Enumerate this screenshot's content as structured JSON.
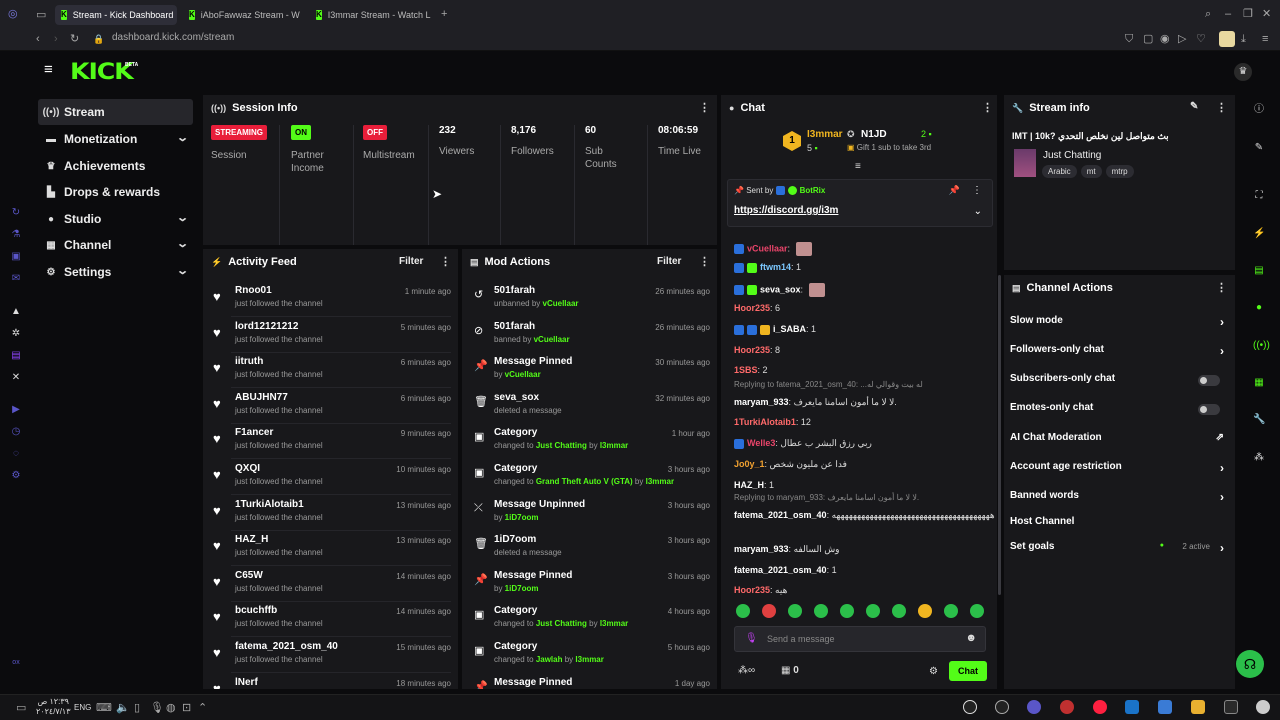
{
  "browser": {
    "tabs": [
      {
        "label": "Stream - Kick Dashboard"
      },
      {
        "label": "iAboFawwaz Stream - W"
      },
      {
        "label": "I3mmar Stream - Watch L"
      }
    ],
    "url": "dashboard.kick.com/stream"
  },
  "app": {
    "logo": "KICK",
    "logo_badge": "BETA"
  },
  "nav": {
    "items": [
      {
        "label": "Stream",
        "icon": "stream-icon"
      },
      {
        "label": "Monetization",
        "icon": "money-icon"
      },
      {
        "label": "Achievements",
        "icon": "achievements-icon"
      },
      {
        "label": "Drops & rewards",
        "icon": "drops-icon"
      },
      {
        "label": "Studio",
        "icon": "studio-icon"
      },
      {
        "label": "Channel",
        "icon": "channel-icon"
      },
      {
        "label": "Settings",
        "icon": "gear-icon"
      }
    ]
  },
  "session": {
    "title": "Session Info",
    "badges": [
      {
        "text": "STREAMING",
        "label": "Session",
        "color": "#e91e3a"
      },
      {
        "text": "ON",
        "label": "Partner Income",
        "color": "#53fc18"
      },
      {
        "text": "OFF",
        "label": "Multistream",
        "color": "#e91e3a"
      }
    ],
    "stats": [
      {
        "value": "232",
        "label": "Viewers"
      },
      {
        "value": "8,176",
        "label": "Followers"
      },
      {
        "value": "60",
        "label": "Sub Counts"
      },
      {
        "value": "08:06:59",
        "label": "Time Live"
      }
    ]
  },
  "activity": {
    "title": "Activity Feed",
    "filter": "Filter",
    "items": [
      {
        "name": "Rnoo01",
        "sub": "just followed the channel",
        "time": "1 minute ago"
      },
      {
        "name": "lord12121212",
        "sub": "just followed the channel",
        "time": "5 minutes ago"
      },
      {
        "name": "iitruth",
        "sub": "just followed the channel",
        "time": "6 minutes ago"
      },
      {
        "name": "ABUJHN77",
        "sub": "just followed the channel",
        "time": "6 minutes ago"
      },
      {
        "name": "F1ancer",
        "sub": "just followed the channel",
        "time": "9 minutes ago"
      },
      {
        "name": "QXQI",
        "sub": "just followed the channel",
        "time": "10 minutes ago"
      },
      {
        "name": "1TurkiAlotaib1",
        "sub": "just followed the channel",
        "time": "13 minutes ago"
      },
      {
        "name": "HAZ_H",
        "sub": "just followed the channel",
        "time": "13 minutes ago"
      },
      {
        "name": "C65W",
        "sub": "just followed the channel",
        "time": "14 minutes ago"
      },
      {
        "name": "bcuchffb",
        "sub": "just followed the channel",
        "time": "14 minutes ago"
      },
      {
        "name": "fatema_2021_osm_40",
        "sub": "just followed the channel",
        "time": "15 minutes ago"
      },
      {
        "name": "lNerf",
        "sub": "",
        "time": "18 minutes ago"
      }
    ]
  },
  "mod": {
    "title": "Mod Actions",
    "filter": "Filter",
    "items": [
      {
        "icon": "undo-icon",
        "glyph": "↺",
        "name": "501farah",
        "pre": "unbanned by ",
        "hl": "vCuellaar",
        "mid": "",
        "hl2": "",
        "time": "26 minutes ago"
      },
      {
        "icon": "ban-icon",
        "glyph": "⊘",
        "name": "501farah",
        "pre": "banned by ",
        "hl": "vCuellaar",
        "mid": "",
        "hl2": "",
        "time": "26 minutes ago"
      },
      {
        "icon": "pin-icon",
        "glyph": "📌",
        "name": "Message Pinned",
        "pre": "by ",
        "hl": "vCuellaar",
        "mid": "",
        "hl2": "",
        "time": "30 minutes ago"
      },
      {
        "icon": "trash-icon",
        "glyph": "🗑",
        "name": "seva_sox",
        "pre": "deleted a message",
        "hl": "",
        "mid": "",
        "hl2": "",
        "time": "32 minutes ago"
      },
      {
        "icon": "category-icon",
        "glyph": "▣",
        "name": "Category",
        "pre": "changed to ",
        "hl": "Just Chatting",
        "mid": " by ",
        "hl2": "I3mmar",
        "time": "1 hour ago"
      },
      {
        "icon": "category-icon",
        "glyph": "▣",
        "name": "Category",
        "pre": "changed to ",
        "hl": "Grand Theft Auto V (GTA)",
        "mid": " by ",
        "hl2": "I3mmar",
        "time": "3 hours ago"
      },
      {
        "icon": "unpin-icon",
        "glyph": "⤫",
        "name": "Message Unpinned",
        "pre": "by ",
        "hl": "1iD7oom",
        "mid": "",
        "hl2": "",
        "time": "3 hours ago"
      },
      {
        "icon": "trash-icon",
        "glyph": "🗑",
        "name": "1iD7oom",
        "pre": "deleted a message",
        "hl": "",
        "mid": "",
        "hl2": "",
        "time": "3 hours ago"
      },
      {
        "icon": "pin-icon",
        "glyph": "📌",
        "name": "Message Pinned",
        "pre": "by ",
        "hl": "1iD7oom",
        "mid": "",
        "hl2": "",
        "time": "3 hours ago"
      },
      {
        "icon": "category-icon",
        "glyph": "▣",
        "name": "Category",
        "pre": "changed to ",
        "hl": "Just Chatting",
        "mid": " by ",
        "hl2": "I3mmar",
        "time": "4 hours ago"
      },
      {
        "icon": "category-icon",
        "glyph": "▣",
        "name": "Category",
        "pre": "changed to ",
        "hl": "Jawlah",
        "mid": " by ",
        "hl2": "I3mmar",
        "time": "5 hours ago"
      },
      {
        "icon": "pin-icon",
        "glyph": "📌",
        "name": "Message Pinned",
        "pre": "",
        "hl": "",
        "mid": "",
        "hl2": "",
        "time": "1 day ago"
      }
    ]
  },
  "chat": {
    "title": "Chat",
    "leaderboard": {
      "first": "I3mmar",
      "first_count": "5",
      "second": "N1JD",
      "second_count": "2",
      "gift_text": "Gift 1 sub to take 3rd"
    },
    "pinned": {
      "sent_by": "Sent by",
      "bot": "BotRix",
      "link": "https://discord.gg/i3m"
    },
    "messages": [
      {
        "user": "vCuellaar",
        "color": "#e9446a",
        "text": "",
        "reply": ""
      },
      {
        "user": "ftwm14",
        "color": "#7cc8ff",
        "text": "1",
        "reply": ""
      },
      {
        "user": "seva_sox",
        "color": "#ffffff",
        "text": "",
        "reply": ""
      },
      {
        "user": "Hoor235",
        "color": "#ff6a6a",
        "text": "6",
        "reply": ""
      },
      {
        "user": "i_SABA",
        "color": "#ffffff",
        "text": "1",
        "reply": ""
      },
      {
        "user": "Hoor235",
        "color": "#ff6a6a",
        "text": "8",
        "reply": ""
      },
      {
        "user": "1SBS",
        "color": "#ff6a6a",
        "text": "2",
        "reply": ""
      },
      {
        "user": "maryam_933",
        "color": "#ffffff",
        "text": "لا لا ما أمون اسامنا مايعرف.",
        "reply": "Replying to fatema_2021_osm_40: ...له بيت وقوالي له"
      },
      {
        "user": "1TurkiAlotaib1",
        "color": "#ff6a6a",
        "text": "12",
        "reply": ""
      },
      {
        "user": "Welle3",
        "color": "#e9446a",
        "text": "ربي رزق البشر ب عطال",
        "reply": ""
      },
      {
        "user": "Jo0y_1",
        "color": "#f0a030",
        "text": "فدا عن مليون شخص",
        "reply": ""
      },
      {
        "user": "HAZ_H",
        "color": "#ffffff",
        "text": "1",
        "reply": ""
      },
      {
        "user": "fatema_2021_osm_40",
        "color": "#ffffff",
        "text": "ههههههههههههههههههههههههههههههههههههههه",
        "reply": "Replying to maryam_933: لا لا ما أمون اسامنا مايعرف."
      },
      {
        "user": "maryam_933",
        "color": "#ffffff",
        "text": "وش السالفه",
        "reply": ""
      },
      {
        "user": "fatema_2021_osm_40",
        "color": "#ffffff",
        "text": "1",
        "reply": ""
      },
      {
        "user": "Hoor235",
        "color": "#ff6a6a",
        "text": "هيه",
        "reply": ""
      }
    ],
    "input_placeholder": "Send a message",
    "footer_count": "0",
    "send_label": "Chat"
  },
  "streaminfo": {
    "title": "Stream info",
    "stream_title": "IMT | 10k? بث متواصل لين نخلص التحدي",
    "category": "Just Chatting",
    "tags": [
      "Arabic",
      "mt",
      "mtrp"
    ]
  },
  "channel_actions": {
    "title": "Channel Actions",
    "items": [
      {
        "label": "Slow mode",
        "control": "chevron"
      },
      {
        "label": "Followers-only chat",
        "control": "chevron"
      },
      {
        "label": "Subscribers-only chat",
        "control": "toggle"
      },
      {
        "label": "Emotes-only chat",
        "control": "toggle"
      },
      {
        "label": "AI Chat Moderation",
        "control": "external"
      },
      {
        "label": "Account age restriction",
        "control": "chevron"
      },
      {
        "label": "Banned words",
        "control": "chevron"
      },
      {
        "label": "Host Channel",
        "control": "none"
      },
      {
        "label": "Set goals",
        "control": "chevron",
        "extra": "2 active"
      }
    ]
  },
  "taskbar": {
    "lang": "ENG",
    "time": "١٢:٣٩ ص",
    "date": "٢٠٢٤/٧/١٣"
  }
}
